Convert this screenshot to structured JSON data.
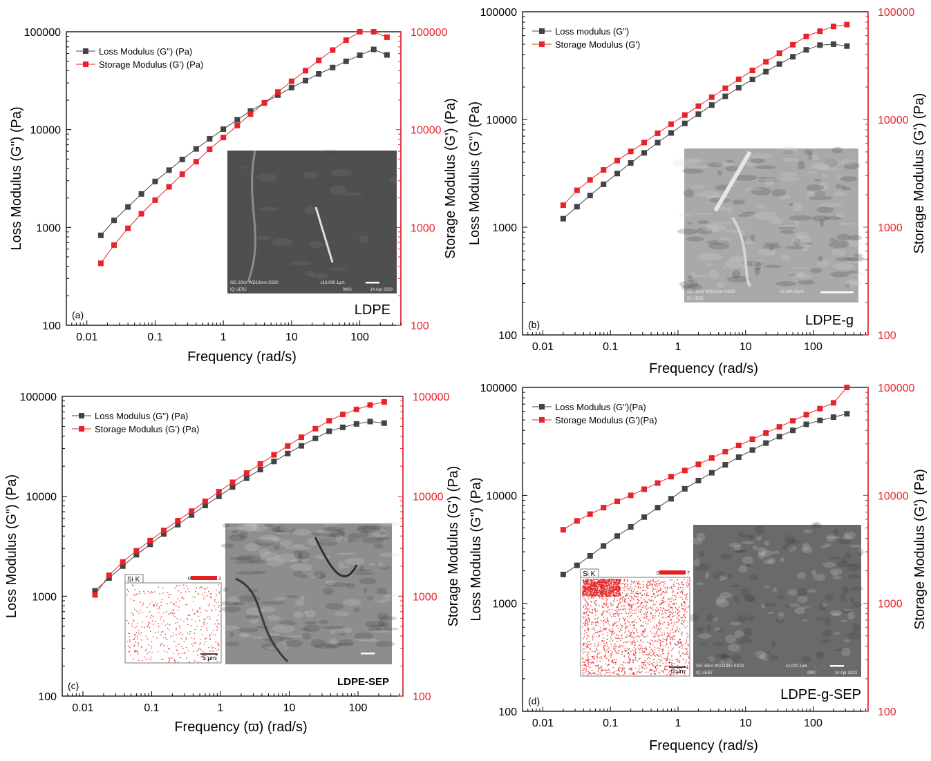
{
  "chart_data": [
    {
      "type": "line",
      "panel_label": "(a)",
      "sample_label": "LDPE",
      "xlabel": "Frequency (rad/s)",
      "ylabel_left": "Loss Modulus (G\") (Pa)",
      "ylabel_right": "Storage Modulus (G') (Pa)",
      "x_scale": "log",
      "y_scale": "log",
      "xlim": [
        0.005,
        400
      ],
      "ylim": [
        100,
        100000
      ],
      "x_ticks": [
        "0.01",
        "0.1",
        "1",
        "10",
        "100"
      ],
      "y_ticks": [
        "100",
        "1000",
        "10000",
        "100000"
      ],
      "legend_position": "top-left",
      "x": [
        0.016,
        0.025,
        0.04,
        0.063,
        0.1,
        0.16,
        0.25,
        0.4,
        0.63,
        1,
        1.6,
        2.5,
        4,
        6.3,
        10,
        16,
        25,
        40,
        63,
        100,
        160,
        250
      ],
      "series": [
        {
          "name": "Loss Modulus (G\") (Pa)",
          "color": "#444444",
          "values": [
            830,
            1180,
            1620,
            2200,
            2950,
            3850,
            4950,
            6350,
            8050,
            10100,
            12600,
            15500,
            18800,
            22500,
            26900,
            31700,
            37100,
            43100,
            49900,
            57600,
            66000,
            58000
          ]
        },
        {
          "name": "Storage Modulus (G') (Pa)",
          "color": "#e8242a",
          "values": [
            430,
            660,
            980,
            1380,
            1900,
            2600,
            3500,
            4700,
            6300,
            8300,
            11000,
            14400,
            18700,
            24200,
            31200,
            40000,
            51000,
            65000,
            82000,
            103000,
            128000,
            88000
          ]
        }
      ],
      "inset": {
        "kind": "sem",
        "tone": "dark",
        "caption_left": "SEI   20kV   WD10mm   SS20",
        "caption_mid": "x10,000   1μm",
        "caption_right": "14 Apr 2023",
        "caption_left2": "IQ UERJ",
        "caption_mid2": "0002"
      }
    },
    {
      "type": "line",
      "panel_label": "(b)",
      "sample_label": "LDPE-g",
      "xlabel": "Frequency (rad/s)",
      "ylabel_left": "Loss Modulus (G\") (Pa)",
      "ylabel_right": "Storage Modulus (G') (Pa)",
      "x_scale": "log",
      "y_scale": "log",
      "xlim": [
        0.005,
        650
      ],
      "ylim": [
        100,
        100000
      ],
      "x_ticks": [
        "0.01",
        "0.1",
        "1",
        "10",
        "100"
      ],
      "y_ticks": [
        "100",
        "1000",
        "10000",
        "100000"
      ],
      "legend_position": "top-left",
      "x": [
        0.02,
        0.032,
        0.05,
        0.079,
        0.126,
        0.2,
        0.316,
        0.5,
        0.79,
        1.26,
        2,
        3.16,
        5,
        7.9,
        12.6,
        20,
        31.6,
        50,
        79,
        126,
        200,
        316
      ],
      "series": [
        {
          "name": "Loss modulus (G\")",
          "color": "#444444",
          "values": [
            1200,
            1550,
            1970,
            2500,
            3150,
            3950,
            4900,
            6100,
            7500,
            9200,
            11200,
            13600,
            16400,
            19700,
            23500,
            27800,
            32700,
            38200,
            44300,
            49000,
            50000,
            48000
          ]
        },
        {
          "name": "Storage Modulus (G')",
          "color": "#e8242a",
          "values": [
            1600,
            2200,
            2750,
            3400,
            4150,
            5050,
            6100,
            7450,
            9050,
            11000,
            13300,
            16100,
            19500,
            23600,
            28500,
            34300,
            41200,
            49400,
            59000,
            66000,
            73000,
            76000
          ]
        }
      ],
      "inset": {
        "kind": "sem",
        "tone": "light",
        "caption_left": "SEI   15kV   WD11mm   SS20",
        "caption_mid": "x2,500   10μm",
        "caption_right": "",
        "caption_left2": "IQ UERJ",
        "caption_mid2": ""
      }
    },
    {
      "type": "line",
      "panel_label": "(c)",
      "sample_label": "LDPE-SEP",
      "xlabel": "Frequency (ϖ) (rad/s)",
      "ylabel_left": "Loss Modulus (G\") (Pa)",
      "ylabel_right": "Storage Modulus (G') (Pa)",
      "x_scale": "log",
      "y_scale": "log",
      "xlim": [
        0.005,
        450
      ],
      "ylim": [
        100,
        100000
      ],
      "x_ticks": [
        "0.01",
        "0.1",
        "1",
        "10",
        "100"
      ],
      "y_ticks": [
        "100",
        "1000",
        "10000",
        "100000"
      ],
      "legend_position": "top-left",
      "x": [
        0.015,
        0.024,
        0.038,
        0.06,
        0.095,
        0.15,
        0.24,
        0.38,
        0.6,
        0.95,
        1.5,
        2.4,
        3.8,
        6,
        9.5,
        15,
        24,
        38,
        60,
        95,
        150,
        240
      ],
      "series": [
        {
          "name": "Loss Modulus (G\") (Pa)",
          "color": "#444444",
          "values": [
            1130,
            1520,
            2000,
            2600,
            3300,
            4200,
            5200,
            6500,
            8100,
            10000,
            12400,
            15200,
            18500,
            22300,
            26800,
            32000,
            38000,
            44800,
            49000,
            53000,
            56000,
            54000
          ]
        },
        {
          "name": "Storage Modulus (G') (Pa)",
          "color": "#e8242a",
          "values": [
            1030,
            1620,
            2200,
            2850,
            3600,
            4550,
            5700,
            7100,
            8900,
            11100,
            13800,
            17100,
            21100,
            26000,
            31900,
            39000,
            47500,
            57000,
            66000,
            74000,
            82000,
            88000
          ]
        }
      ],
      "inset_map": {
        "kind": "eds",
        "element": "Si K",
        "scale_min": "0",
        "scale_max": "2",
        "scalebar": "5 μm",
        "density": "low"
      },
      "inset": {
        "kind": "sem",
        "tone": "mid"
      }
    },
    {
      "type": "line",
      "panel_label": "(d)",
      "sample_label": "LDPE-g-SEP",
      "xlabel": "Frequency (rad/s)",
      "ylabel_left": "Loss Modulus (G\") (Pa)",
      "ylabel_right": "Storage Modulus (G') (Pa)",
      "x_scale": "log",
      "y_scale": "log",
      "xlim": [
        0.005,
        650
      ],
      "ylim": [
        100,
        100000
      ],
      "x_ticks": [
        "0.01",
        "0.1",
        "1",
        "10",
        "100"
      ],
      "y_ticks": [
        "100",
        "1000",
        "10000",
        "100000"
      ],
      "legend_position": "top-left",
      "x": [
        0.02,
        0.032,
        0.05,
        0.079,
        0.126,
        0.2,
        0.316,
        0.5,
        0.79,
        1.26,
        2,
        3.16,
        5,
        7.9,
        12.6,
        20,
        31.6,
        50,
        79,
        126,
        200,
        316
      ],
      "series": [
        {
          "name": "Loss Modulus (G\")(Pa)",
          "color": "#444444",
          "values": [
            1850,
            2250,
            2750,
            3400,
            4200,
            5100,
            6300,
            7700,
            9300,
            11500,
            13700,
            16200,
            19200,
            22600,
            26300,
            30500,
            35000,
            40000,
            45500,
            49500,
            53000,
            57000
          ]
        },
        {
          "name": "Storage Modulus (G')(Pa)",
          "color": "#e8242a",
          "values": [
            4800,
            5800,
            6700,
            7700,
            8800,
            10000,
            11400,
            13000,
            14900,
            17000,
            19400,
            22200,
            25400,
            29000,
            33100,
            37800,
            43100,
            49100,
            55900,
            63600,
            72000,
            100000
          ]
        }
      ],
      "inset_map": {
        "kind": "eds",
        "element": "Si K",
        "scale_min": "0",
        "scale_max": "7",
        "scalebar": "5 μm",
        "density": "high"
      },
      "inset": {
        "kind": "sem",
        "tone": "dark-texture",
        "caption_left": "SEI   15kV   WD11mm   SS20",
        "caption_mid": "x2,000   1μm",
        "caption_right": "14 Apr 2023",
        "caption_left2": "IQ UERJ",
        "caption_mid2": "0007"
      }
    }
  ]
}
